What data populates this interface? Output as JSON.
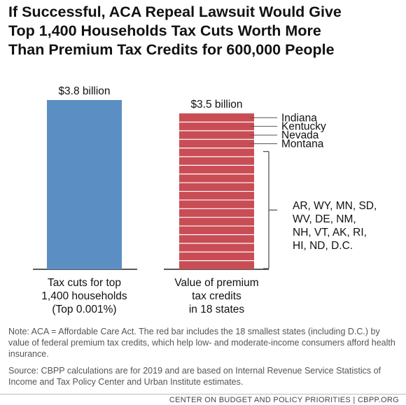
{
  "title_lines": [
    "If Successful, ACA Repeal Lawsuit Would Give",
    "Top 1,400 Households Tax Cuts Worth More",
    "Than Premium Tax Credits for 600,000 People"
  ],
  "chart_data": {
    "type": "bar",
    "ylim": [
      0,
      3.8
    ],
    "colors": {
      "blue_bar": "#5b8fc4",
      "red_bar": "#c94d55",
      "segment_line": "#ffffff",
      "leader": "#555555"
    },
    "bars": [
      {
        "value": 3.8,
        "value_label": "$3.8 billion",
        "category_lines": [
          "Tax cuts for top",
          "1,400 households",
          "(Top 0.001%)"
        ]
      },
      {
        "value": 3.5,
        "value_label": "$3.5 billion",
        "category_lines": [
          "Value of premium",
          "tax credits",
          "in 18 states"
        ],
        "segments": 18,
        "named_states": [
          "Indiana",
          "Kentucky",
          "Nevada",
          "Montana"
        ],
        "remaining_states_lines": [
          "AR, WY, MN, SD,",
          "WV, DE, NM,",
          "NH, VT, AK, RI,",
          "HI, ND, D.C."
        ]
      }
    ]
  },
  "notes": {
    "note": "Note: ACA = Affordable Care Act. The red bar includes the 18 smallest states (including D.C.) by value of federal premium tax credits, which help low- and moderate-income consumers afford health insurance.",
    "source": "Source: CBPP calculations are for 2019 and are based on Internal Revenue Service Statistics of Income and Tax Policy Center and Urban Institute estimates."
  },
  "footer": "CENTER ON BUDGET AND POLICY PRIORITIES | CBPP.ORG"
}
